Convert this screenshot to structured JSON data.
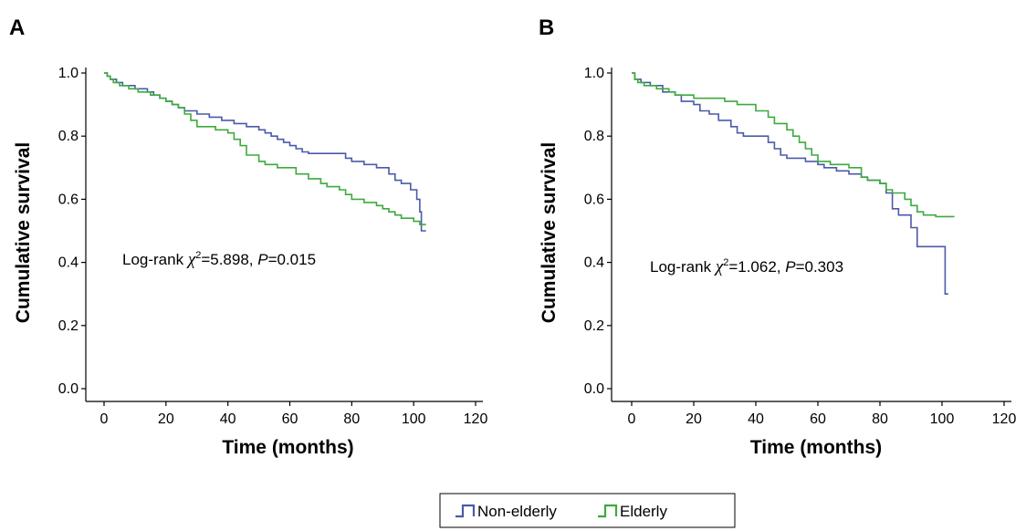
{
  "chart_data": [
    {
      "panel_label": "A",
      "type": "line",
      "step": true,
      "xlabel": "Time (months)",
      "ylabel": "Cumulative survival",
      "xlim": [
        0,
        120
      ],
      "ylim": [
        0.0,
        1.0
      ],
      "x_ticks": [
        "0",
        "20",
        "40",
        "60",
        "80",
        "100",
        "120"
      ],
      "y_ticks": [
        "0.0",
        "0.2",
        "0.4",
        "0.6",
        "0.8",
        "1.0"
      ],
      "grid": false,
      "annotation": {
        "prefix": "Log-rank ",
        "symbol": "χ",
        "sup": "2",
        "stat": "=5.898, ",
        "p_label": "P",
        "p_value": "=0.015"
      },
      "series": [
        {
          "name": "Non-elderly",
          "color": "#4a5aa8",
          "points": [
            [
              0,
              1.0
            ],
            [
              1,
              0.99
            ],
            [
              2,
              0.98
            ],
            [
              4,
              0.97
            ],
            [
              6,
              0.96
            ],
            [
              10,
              0.95
            ],
            [
              14,
              0.94
            ],
            [
              16,
              0.93
            ],
            [
              18,
              0.92
            ],
            [
              20,
              0.91
            ],
            [
              22,
              0.9
            ],
            [
              24,
              0.89
            ],
            [
              26,
              0.88
            ],
            [
              30,
              0.87
            ],
            [
              34,
              0.86
            ],
            [
              38,
              0.85
            ],
            [
              42,
              0.84
            ],
            [
              46,
              0.83
            ],
            [
              50,
              0.82
            ],
            [
              52,
              0.81
            ],
            [
              54,
              0.8
            ],
            [
              56,
              0.79
            ],
            [
              58,
              0.78
            ],
            [
              60,
              0.77
            ],
            [
              62,
              0.76
            ],
            [
              64,
              0.75
            ],
            [
              66,
              0.745
            ],
            [
              78,
              0.73
            ],
            [
              80,
              0.72
            ],
            [
              84,
              0.71
            ],
            [
              88,
              0.7
            ],
            [
              92,
              0.68
            ],
            [
              94,
              0.66
            ],
            [
              96,
              0.65
            ],
            [
              99,
              0.63
            ],
            [
              101,
              0.6
            ],
            [
              102,
              0.56
            ],
            [
              102.5,
              0.5
            ],
            [
              104,
              0.5
            ]
          ]
        },
        {
          "name": "Elderly",
          "color": "#3daa3d",
          "points": [
            [
              0,
              1.0
            ],
            [
              1,
              0.99
            ],
            [
              2,
              0.98
            ],
            [
              3,
              0.97
            ],
            [
              5,
              0.96
            ],
            [
              8,
              0.95
            ],
            [
              11,
              0.94
            ],
            [
              15,
              0.93
            ],
            [
              18,
              0.92
            ],
            [
              20,
              0.91
            ],
            [
              22,
              0.9
            ],
            [
              24,
              0.89
            ],
            [
              26,
              0.87
            ],
            [
              28,
              0.85
            ],
            [
              30,
              0.83
            ],
            [
              36,
              0.82
            ],
            [
              40,
              0.81
            ],
            [
              42,
              0.79
            ],
            [
              44,
              0.77
            ],
            [
              46,
              0.74
            ],
            [
              50,
              0.72
            ],
            [
              52,
              0.71
            ],
            [
              56,
              0.7
            ],
            [
              62,
              0.68
            ],
            [
              66,
              0.665
            ],
            [
              70,
              0.65
            ],
            [
              72,
              0.64
            ],
            [
              76,
              0.63
            ],
            [
              78,
              0.615
            ],
            [
              80,
              0.6
            ],
            [
              84,
              0.59
            ],
            [
              88,
              0.58
            ],
            [
              90,
              0.57
            ],
            [
              92,
              0.56
            ],
            [
              94,
              0.55
            ],
            [
              96,
              0.54
            ],
            [
              100,
              0.53
            ],
            [
              102,
              0.52
            ],
            [
              104,
              0.52
            ]
          ]
        }
      ]
    },
    {
      "panel_label": "B",
      "type": "line",
      "step": true,
      "xlabel": "Time (months)",
      "ylabel": "Cumulative survival",
      "xlim": [
        0,
        120
      ],
      "ylim": [
        0.0,
        1.0
      ],
      "x_ticks": [
        "0",
        "20",
        "40",
        "60",
        "80",
        "100",
        "120"
      ],
      "y_ticks": [
        "0.0",
        "0.2",
        "0.4",
        "0.6",
        "0.8",
        "1.0"
      ],
      "grid": false,
      "annotation": {
        "prefix": "Log-rank ",
        "symbol": "χ",
        "sup": "2",
        "stat": "=1.062, ",
        "p_label": "P",
        "p_value": "=0.303"
      },
      "series": [
        {
          "name": "Non-elderly",
          "color": "#4a5aa8",
          "points": [
            [
              0,
              1.0
            ],
            [
              1,
              0.98
            ],
            [
              3,
              0.97
            ],
            [
              6,
              0.96
            ],
            [
              10,
              0.94
            ],
            [
              14,
              0.93
            ],
            [
              16,
              0.91
            ],
            [
              20,
              0.9
            ],
            [
              22,
              0.88
            ],
            [
              25,
              0.87
            ],
            [
              28,
              0.85
            ],
            [
              32,
              0.83
            ],
            [
              34,
              0.81
            ],
            [
              36,
              0.8
            ],
            [
              44,
              0.78
            ],
            [
              46,
              0.76
            ],
            [
              48,
              0.74
            ],
            [
              50,
              0.73
            ],
            [
              56,
              0.72
            ],
            [
              60,
              0.71
            ],
            [
              62,
              0.7
            ],
            [
              66,
              0.69
            ],
            [
              70,
              0.68
            ],
            [
              74,
              0.67
            ],
            [
              76,
              0.66
            ],
            [
              80,
              0.65
            ],
            [
              82,
              0.62
            ],
            [
              84,
              0.57
            ],
            [
              86,
              0.55
            ],
            [
              90,
              0.51
            ],
            [
              92,
              0.45
            ],
            [
              100,
              0.45
            ],
            [
              101,
              0.3
            ],
            [
              102,
              0.3
            ]
          ]
        },
        {
          "name": "Elderly",
          "color": "#3daa3d",
          "points": [
            [
              0,
              1.0
            ],
            [
              1,
              0.98
            ],
            [
              2,
              0.97
            ],
            [
              4,
              0.96
            ],
            [
              8,
              0.95
            ],
            [
              12,
              0.94
            ],
            [
              14,
              0.93
            ],
            [
              20,
              0.92
            ],
            [
              30,
              0.91
            ],
            [
              34,
              0.9
            ],
            [
              40,
              0.88
            ],
            [
              44,
              0.86
            ],
            [
              46,
              0.84
            ],
            [
              50,
              0.82
            ],
            [
              52,
              0.8
            ],
            [
              54,
              0.78
            ],
            [
              56,
              0.76
            ],
            [
              58,
              0.74
            ],
            [
              60,
              0.72
            ],
            [
              64,
              0.71
            ],
            [
              70,
              0.7
            ],
            [
              74,
              0.67
            ],
            [
              76,
              0.66
            ],
            [
              80,
              0.65
            ],
            [
              82,
              0.63
            ],
            [
              84,
              0.62
            ],
            [
              88,
              0.6
            ],
            [
              90,
              0.58
            ],
            [
              92,
              0.56
            ],
            [
              94,
              0.55
            ],
            [
              98,
              0.545
            ],
            [
              104,
              0.545
            ]
          ]
        }
      ]
    }
  ],
  "legend": {
    "items": [
      {
        "label": "Non-elderly",
        "color": "#4a5aa8"
      },
      {
        "label": "Elderly",
        "color": "#3daa3d"
      }
    ]
  }
}
